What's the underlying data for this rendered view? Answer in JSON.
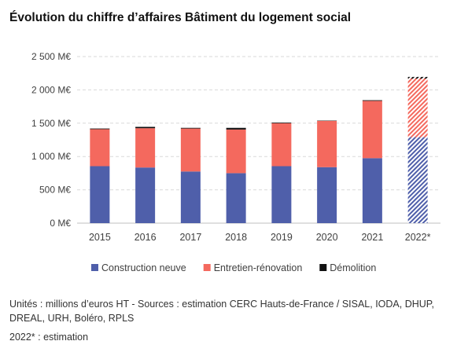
{
  "chart_data": {
    "type": "bar",
    "stacked": true,
    "title": "Évolution du chiffre d’affaires Bâtiment du logement social",
    "categories": [
      "2015",
      "2016",
      "2017",
      "2018",
      "2019",
      "2020",
      "2021",
      "2022*"
    ],
    "estimated_categories": [
      "2022*"
    ],
    "series": [
      {
        "name": "Construction neuve",
        "color": "#4f5faa",
        "values": [
          855,
          835,
          775,
          750,
          855,
          840,
          975,
          1290
        ]
      },
      {
        "name": "Entretien-rénovation",
        "color": "#f4695e",
        "values": [
          555,
          590,
          645,
          655,
          645,
          695,
          860,
          880
        ]
      },
      {
        "name": "Démolition",
        "color": "#111111",
        "values": [
          10,
          20,
          10,
          25,
          10,
          5,
          10,
          25
        ]
      }
    ],
    "yticks": [
      "0 M€",
      "500 M€",
      "1 000 M€",
      "1 500 M€",
      "2 000 M€",
      "2 500 M€"
    ],
    "ylim": [
      0,
      2500
    ],
    "grid": true,
    "legend": "bottom"
  },
  "notes": {
    "units": "Unités : millions d’euros HT - Sources : estimation CERC Hauts-de-France / SISAL, IODA, DHUP, DREAL, URH, Boléro, RPLS",
    "estimate": "2022* : estimation"
  }
}
